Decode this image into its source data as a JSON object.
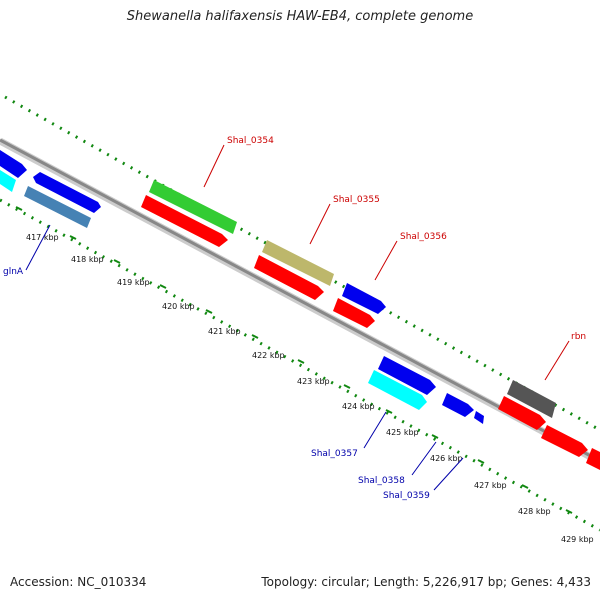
{
  "title": "Shewanella halifaxensis HAW-EB4, complete genome",
  "footer": {
    "accession": "Accession: NC_010334",
    "summary": "Topology: circular; Length: 5,226,917 bp; Genes: 4,433"
  },
  "colors": {
    "backbone": "#888888",
    "dotted_track": "#118811",
    "plus_label": "#cc0000",
    "minus_label": "#0000aa",
    "cds_red": "#ff0000",
    "cds_blue": "#0000ee",
    "cds_green": "#33cc33",
    "cds_khaki": "#bdb76b",
    "cds_cyan": "#00ffff",
    "cds_steelblue": "#4682b4",
    "cds_gray": "#555555"
  },
  "ticks": [
    "417 kbp",
    "418 kbp",
    "419 kbp",
    "420 kbp",
    "421 kbp",
    "422 kbp",
    "423 kbp",
    "424 kbp",
    "425 kbp",
    "426 kbp",
    "427 kbp",
    "428 kbp",
    "429 kbp"
  ],
  "gene_labels": {
    "plus": [
      "Shal_0354",
      "Shal_0355",
      "Shal_0356",
      "rbn"
    ],
    "minus": [
      "glnA",
      "Shal_0357",
      "Shal_0358",
      "Shal_0359"
    ]
  }
}
